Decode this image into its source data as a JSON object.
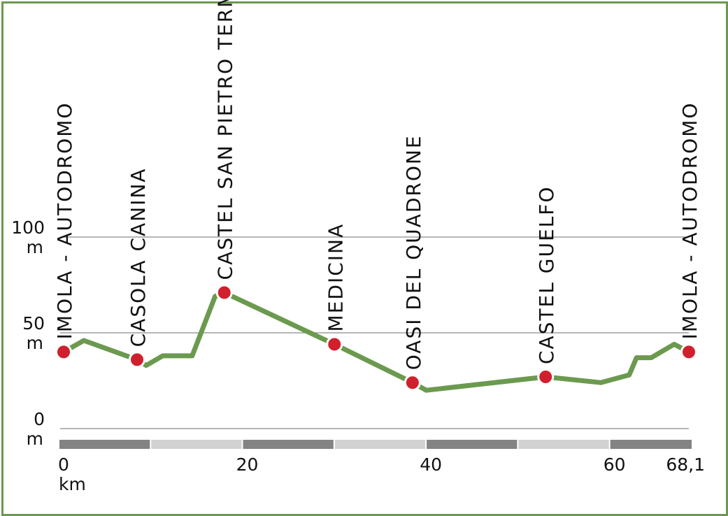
{
  "chart_data": {
    "type": "line",
    "title": "",
    "xlabel": "km",
    "ylabel": "m",
    "xlim": [
      0,
      68.1
    ],
    "ylim": [
      0,
      100
    ],
    "x_ticks": [
      {
        "value": 0,
        "label": "0"
      },
      {
        "value": 20,
        "label": "20"
      },
      {
        "value": 40,
        "label": "40"
      },
      {
        "value": 60,
        "label": "60"
      },
      {
        "value": 68.1,
        "label": "68,1"
      }
    ],
    "y_ticks": [
      {
        "value": 0,
        "label": "0",
        "unit": "m"
      },
      {
        "value": 50,
        "label": "50",
        "unit": "m"
      },
      {
        "value": 100,
        "label": "100",
        "unit": "m"
      }
    ],
    "grid": true,
    "colors": {
      "line": "#6b9a4f",
      "frame": "#6b9a4f",
      "stop_fill": "#d0202e",
      "scale_dark": "#838383",
      "scale_light": "#d2d2d2",
      "grid": "#8a8a8a"
    },
    "series": [
      {
        "x": [
          0,
          2.2,
          8,
          9,
          10.8,
          14,
          16.5,
          17.5,
          29.5,
          38,
          39.5,
          52.5,
          58.5,
          61.6,
          62.4,
          64,
          66.5,
          68.1
        ],
        "y": [
          40,
          46,
          36,
          33,
          38,
          38,
          69,
          71,
          44,
          24,
          20,
          27,
          24,
          28,
          37,
          37,
          44,
          40
        ]
      }
    ],
    "stops": [
      {
        "name": "IMOLA - AUTODROMO",
        "x": 0,
        "y": 40
      },
      {
        "name": "CASOLA CANINA",
        "x": 8,
        "y": 36
      },
      {
        "name": "CASTEL SAN PIETRO TERME",
        "x": 17.5,
        "y": 71
      },
      {
        "name": "MEDICINA",
        "x": 29.5,
        "y": 44
      },
      {
        "name": "OASI DEL QUADRONE",
        "x": 38,
        "y": 24
      },
      {
        "name": "CASTEL GUELFO",
        "x": 52.5,
        "y": 27
      },
      {
        "name": "IMOLA - AUTODROMO",
        "x": 68.1,
        "y": 40
      }
    ],
    "scale_bar_segment_km": 10
  }
}
